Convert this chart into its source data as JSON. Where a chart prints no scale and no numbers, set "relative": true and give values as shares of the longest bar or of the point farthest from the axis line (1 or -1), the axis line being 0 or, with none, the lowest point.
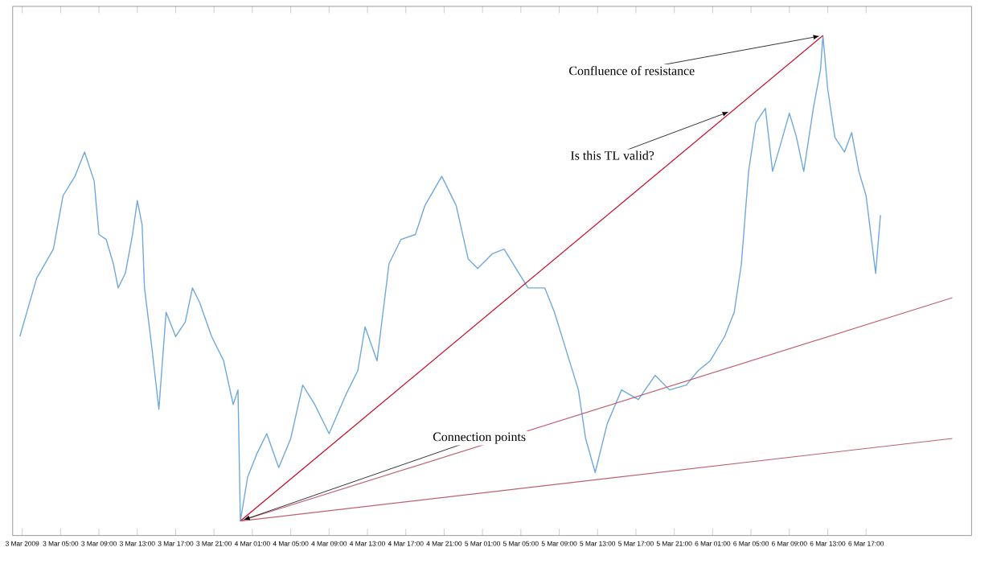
{
  "chart_data": {
    "type": "line",
    "relative": true,
    "tick_labels": "x",
    "xlim": [
      "2009-03-03T00:00",
      "2009-03-07T04:00"
    ],
    "xticks": [
      {
        "value": "2009-03-03T01:00",
        "label": "3 Mar 2009"
      },
      {
        "value": "2009-03-03T05:00",
        "label": "3 Mar 05:00"
      },
      {
        "value": "2009-03-03T09:00",
        "label": "3 Mar 09:00"
      },
      {
        "value": "2009-03-03T13:00",
        "label": "3 Mar 13:00"
      },
      {
        "value": "2009-03-03T17:00",
        "label": "3 Mar 17:00"
      },
      {
        "value": "2009-03-03T21:00",
        "label": "3 Mar 21:00"
      },
      {
        "value": "2009-03-04T01:00",
        "label": "4 Mar 01:00"
      },
      {
        "value": "2009-03-04T05:00",
        "label": "4 Mar 05:00"
      },
      {
        "value": "2009-03-04T09:00",
        "label": "4 Mar 09:00"
      },
      {
        "value": "2009-03-04T13:00",
        "label": "4 Mar 13:00"
      },
      {
        "value": "2009-03-04T17:00",
        "label": "4 Mar 17:00"
      },
      {
        "value": "2009-03-04T21:00",
        "label": "4 Mar 21:00"
      },
      {
        "value": "2009-03-05T01:00",
        "label": "5 Mar 01:00"
      },
      {
        "value": "2009-03-05T05:00",
        "label": "5 Mar 05:00"
      },
      {
        "value": "2009-03-05T09:00",
        "label": "5 Mar 09:00"
      },
      {
        "value": "2009-03-05T13:00",
        "label": "5 Mar 13:00"
      },
      {
        "value": "2009-03-05T17:00",
        "label": "5 Mar 17:00"
      },
      {
        "value": "2009-03-05T21:00",
        "label": "5 Mar 21:00"
      },
      {
        "value": "2009-03-06T01:00",
        "label": "6 Mar 01:00"
      },
      {
        "value": "2009-03-06T05:00",
        "label": "6 Mar 05:00"
      },
      {
        "value": "2009-03-06T09:00",
        "label": "6 Mar 09:00"
      },
      {
        "value": "2009-03-06T13:00",
        "label": "6 Mar 13:00"
      },
      {
        "value": "2009-03-06T17:00",
        "label": "6 Mar 17:00"
      }
    ],
    "series": [
      {
        "color": "#6fa8dc",
        "x": [
          "2009-03-03T00:45",
          "2009-03-03T02:30",
          "2009-03-03T04:15",
          "2009-03-03T05:15",
          "2009-03-03T06:30",
          "2009-03-03T07:30",
          "2009-03-03T08:30",
          "2009-03-03T09:00",
          "2009-03-03T09:45",
          "2009-03-03T10:30",
          "2009-03-03T11:00",
          "2009-03-03T11:45",
          "2009-03-03T12:30",
          "2009-03-03T13:00",
          "2009-03-03T13:30",
          "2009-03-03T13:45",
          "2009-03-03T14:30",
          "2009-03-03T15:15",
          "2009-03-03T16:00",
          "2009-03-03T17:00",
          "2009-03-03T18:00",
          "2009-03-03T18:45",
          "2009-03-03T19:30",
          "2009-03-03T20:45",
          "2009-03-03T22:00",
          "2009-03-03T23:00",
          "2009-03-03T23:30",
          "2009-03-03T23:45",
          "2009-03-04T00:30",
          "2009-03-04T01:30",
          "2009-03-04T02:30",
          "2009-03-04T03:45",
          "2009-03-04T05:00",
          "2009-03-04T06:15",
          "2009-03-04T07:30",
          "2009-03-04T09:00",
          "2009-03-04T10:45",
          "2009-03-04T12:00",
          "2009-03-04T12:45",
          "2009-03-04T14:00",
          "2009-03-04T15:15",
          "2009-03-04T16:30",
          "2009-03-04T18:00",
          "2009-03-04T19:00",
          "2009-03-04T20:45",
          "2009-03-04T22:15",
          "2009-03-04T23:30",
          "2009-03-05T00:30",
          "2009-03-05T02:00",
          "2009-03-05T03:15",
          "2009-03-05T04:30",
          "2009-03-05T05:45",
          "2009-03-05T07:30",
          "2009-03-05T08:30",
          "2009-03-05T09:45",
          "2009-03-05T11:00",
          "2009-03-05T11:45",
          "2009-03-05T12:45",
          "2009-03-05T14:00",
          "2009-03-05T15:30",
          "2009-03-05T17:15",
          "2009-03-05T19:00",
          "2009-03-05T20:30",
          "2009-03-05T22:15",
          "2009-03-05T23:30",
          "2009-03-06T00:45",
          "2009-03-06T02:15",
          "2009-03-06T03:15",
          "2009-03-06T04:00",
          "2009-03-06T04:45",
          "2009-03-06T05:30",
          "2009-03-06T06:30",
          "2009-03-06T07:15",
          "2009-03-06T08:00",
          "2009-03-06T09:00",
          "2009-03-06T09:45",
          "2009-03-06T10:30",
          "2009-03-06T11:30",
          "2009-03-06T12:15",
          "2009-03-06T12:30",
          "2009-03-06T13:00",
          "2009-03-06T13:45",
          "2009-03-06T14:45",
          "2009-03-06T15:30",
          "2009-03-06T16:15",
          "2009-03-06T17:00",
          "2009-03-06T18:00",
          "2009-03-06T18:30"
        ],
        "values": [
          0.38,
          0.5,
          0.56,
          0.67,
          0.71,
          0.76,
          0.7,
          0.59,
          0.58,
          0.53,
          0.48,
          0.51,
          0.59,
          0.66,
          0.61,
          0.48,
          0.36,
          0.23,
          0.43,
          0.38,
          0.41,
          0.48,
          0.45,
          0.38,
          0.33,
          0.24,
          0.27,
          0.0,
          0.09,
          0.14,
          0.18,
          0.11,
          0.17,
          0.28,
          0.24,
          0.18,
          0.26,
          0.31,
          0.4,
          0.33,
          0.53,
          0.58,
          0.59,
          0.65,
          0.71,
          0.65,
          0.54,
          0.52,
          0.55,
          0.56,
          0.52,
          0.48,
          0.48,
          0.43,
          0.35,
          0.27,
          0.17,
          0.1,
          0.2,
          0.27,
          0.25,
          0.3,
          0.27,
          0.28,
          0.31,
          0.33,
          0.38,
          0.43,
          0.53,
          0.72,
          0.82,
          0.85,
          0.72,
          0.77,
          0.84,
          0.79,
          0.72,
          0.85,
          0.93,
          1.0,
          0.89,
          0.79,
          0.76,
          0.8,
          0.72,
          0.67,
          0.51,
          0.63
        ]
      },
      {
        "color": "#cc0022",
        "x": [
          "2009-03-03T23:45",
          "2009-03-06T12:30"
        ],
        "values": [
          0.0,
          1.0
        ]
      },
      {
        "color": "#c06070",
        "x": [
          "2009-03-03T23:45",
          "2009-03-07T02:00"
        ],
        "values": [
          0.0,
          0.46
        ]
      },
      {
        "color": "#c06070",
        "x": [
          "2009-03-03T23:45",
          "2009-03-07T02:00"
        ],
        "values": [
          0.0,
          0.17
        ]
      }
    ],
    "annotations": [
      {
        "text": "Confluence of resistance",
        "x": "2009-03-06T12:30",
        "y": 1.0
      },
      {
        "text": "Is this TL valid?",
        "x": "2009-03-06T03:00",
        "y": 0.845
      },
      {
        "text": "Connection points",
        "x": "2009-03-03T23:45",
        "y": 0.0
      }
    ]
  }
}
